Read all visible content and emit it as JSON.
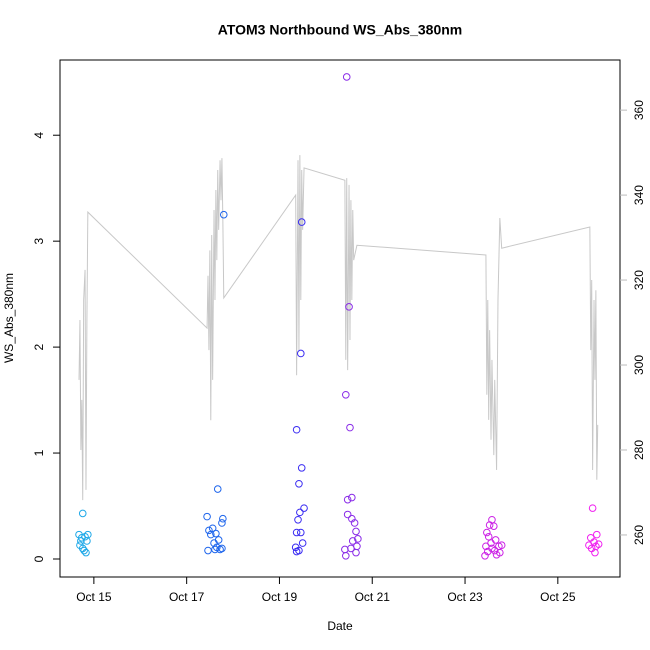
{
  "chart_data": {
    "type": "scatter",
    "title": "ATOM3 Northbound WS_Abs_380nm",
    "x_label": "Date",
    "y_label": "WS_Abs_380nm",
    "xlim": [
      14.27,
      26.34
    ],
    "ylim": [
      -0.17,
      4.71
    ],
    "y2lim": [
      250.1,
      371.8
    ],
    "xticks": [
      {
        "value": 15,
        "label": "Oct 15"
      },
      {
        "value": 17,
        "label": "Oct 17"
      },
      {
        "value": 19,
        "label": "Oct 19"
      },
      {
        "value": 21,
        "label": "Oct 21"
      },
      {
        "value": 23,
        "label": "Oct 23"
      },
      {
        "value": 25,
        "label": "Oct 25"
      }
    ],
    "yticks": [
      0,
      1,
      2,
      3,
      4
    ],
    "y2ticks": [
      260,
      280,
      300,
      320,
      340,
      360
    ],
    "y2_color": "#bbbbbb",
    "series": [
      {
        "type": "line",
        "axis": "y2",
        "color": "#c8c8c8",
        "x": [
          14.68,
          14.7,
          14.72,
          14.74,
          14.76,
          14.78,
          14.81,
          14.83,
          14.85,
          14.87,
          17.44,
          17.46,
          17.48,
          17.5,
          17.52,
          17.54,
          17.56,
          17.59,
          17.61,
          17.63,
          17.65,
          17.67,
          17.69,
          17.72,
          17.74,
          17.76,
          17.78,
          17.8,
          19.35,
          19.37,
          19.4,
          19.42,
          19.44,
          19.46,
          19.48,
          19.5,
          19.53,
          20.41,
          20.43,
          20.45,
          20.47,
          20.5,
          20.52,
          20.54,
          20.56,
          20.58,
          20.6,
          20.67,
          23.45,
          23.47,
          23.49,
          23.51,
          23.53,
          23.56,
          23.58,
          23.62,
          23.64,
          23.68,
          23.71,
          23.75,
          23.79,
          25.69,
          25.71,
          25.73,
          25.75,
          25.78,
          25.8,
          25.82,
          25.84,
          25.86
        ],
        "values": [
          296.5,
          310.6,
          280,
          291.8,
          268.2,
          315.3,
          322.4,
          270.6,
          310.6,
          336,
          308.7,
          321,
          303.5,
          327,
          287,
          330.6,
          296.5,
          336.5,
          315.3,
          341.2,
          324.7,
          345.9,
          331.8,
          348.2,
          338.8,
          348.7,
          334,
          315.8,
          340,
          297.6,
          348.2,
          303.5,
          349.4,
          315.3,
          345.9,
          331.8,
          346.4,
          343.5,
          301.2,
          344,
          298.8,
          342.4,
          305.9,
          338.8,
          315.3,
          336.5,
          324.7,
          328.2,
          325.9,
          293,
          315.3,
          287.1,
          308.2,
          282.4,
          301.2,
          278.8,
          296.5,
          275.3,
          315.3,
          334.6,
          327.5,
          332.5,
          303.5,
          320,
          275.3,
          315.3,
          296.5,
          317.6,
          273,
          285.9
        ]
      },
      {
        "color": "#1ea8e8",
        "x": [
          14.76,
          14.68,
          14.74,
          14.81,
          14.87,
          14.7,
          14.76,
          14.83,
          14.79,
          14.85,
          14.72
        ],
        "values": [
          0.43,
          0.23,
          0.2,
          0.21,
          0.23,
          0.13,
          0.1,
          0.06,
          0.08,
          0.17,
          0.17
        ]
      },
      {
        "color": "#1f66ec",
        "x": [
          17.67,
          17.44,
          17.78,
          17.76,
          17.48,
          17.56,
          17.52,
          17.63,
          17.69,
          17.59,
          17.65,
          17.72,
          17.46,
          17.76,
          17.61,
          17.8
        ],
        "values": [
          0.66,
          0.4,
          0.38,
          0.34,
          0.27,
          0.29,
          0.23,
          0.24,
          0.18,
          0.15,
          0.11,
          0.09,
          0.08,
          0.1,
          0.09,
          3.25
        ]
      },
      {
        "color": "#3a2cf2",
        "x": [
          19.48,
          19.46,
          19.37,
          19.48,
          19.42,
          19.44,
          19.53,
          19.4,
          19.46,
          19.37,
          19.5,
          19.35,
          19.42,
          19.37
        ],
        "values": [
          3.18,
          1.94,
          1.22,
          0.86,
          0.71,
          0.44,
          0.48,
          0.37,
          0.25,
          0.25,
          0.15,
          0.11,
          0.08,
          0.07
        ]
      },
      {
        "color": "#8a2ce8",
        "x": [
          20.45,
          20.5,
          20.43,
          20.52,
          20.56,
          20.47,
          20.47,
          20.56,
          20.62,
          20.65,
          20.41,
          20.58,
          20.67,
          20.65,
          20.43,
          20.54,
          20.69
        ],
        "values": [
          4.55,
          2.38,
          1.55,
          1.24,
          0.58,
          0.56,
          0.42,
          0.38,
          0.34,
          0.26,
          0.09,
          0.17,
          0.12,
          0.06,
          0.03,
          0.1,
          0.19
        ]
      },
      {
        "color": "#cc22e6",
        "x": [
          23.58,
          23.53,
          23.62,
          23.47,
          23.51,
          23.66,
          23.45,
          23.58,
          23.73,
          23.79,
          23.64,
          23.49,
          23.68,
          23.43,
          23.56,
          23.75
        ],
        "values": [
          0.37,
          0.32,
          0.31,
          0.25,
          0.21,
          0.18,
          0.12,
          0.1,
          0.12,
          0.13,
          0.08,
          0.07,
          0.04,
          0.03,
          0.15,
          0.06
        ]
      },
      {
        "color": "#f020f0",
        "x": [
          25.75,
          25.84,
          25.71,
          25.78,
          25.67,
          25.82,
          25.73,
          25.88,
          25.8
        ],
        "values": [
          0.48,
          0.23,
          0.2,
          0.16,
          0.13,
          0.12,
          0.1,
          0.14,
          0.06
        ]
      }
    ]
  }
}
